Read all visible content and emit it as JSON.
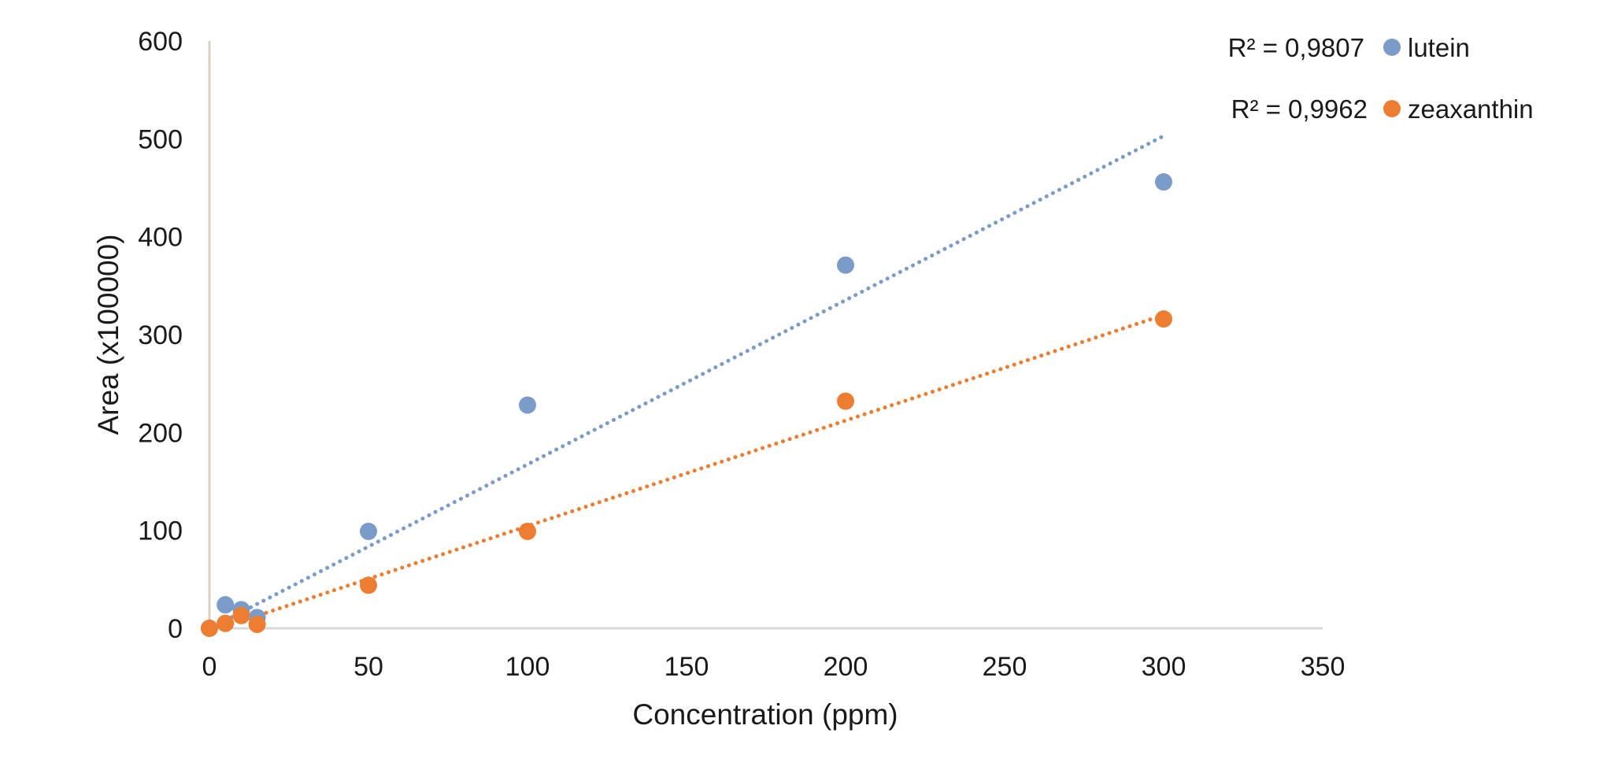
{
  "chart_data": {
    "type": "scatter",
    "title": "",
    "xlabel": "Concentration (ppm)",
    "ylabel": "Area (x100000)",
    "xlim": [
      0,
      350
    ],
    "ylim": [
      0,
      600
    ],
    "x_ticks": [
      "0",
      "50",
      "100",
      "150",
      "200",
      "250",
      "300",
      "350"
    ],
    "y_ticks": [
      "0",
      "100",
      "200",
      "300",
      "400",
      "500",
      "600"
    ],
    "grid": false,
    "legend_position": "top-right",
    "series": [
      {
        "name": "lutein",
        "color": "#7b9bc9",
        "marker": "circle",
        "points": [
          {
            "x": 0,
            "y": 0
          },
          {
            "x": 5,
            "y": 24
          },
          {
            "x": 10,
            "y": 19
          },
          {
            "x": 15,
            "y": 11
          },
          {
            "x": 50,
            "y": 99
          },
          {
            "x": 100,
            "y": 228
          },
          {
            "x": 200,
            "y": 371
          },
          {
            "x": 300,
            "y": 456
          }
        ],
        "trendline": {
          "style": "dotted",
          "from": [
            5,
            8
          ],
          "to": [
            300,
            503
          ]
        },
        "r2_label": "R² = 0,9807"
      },
      {
        "name": "zeaxanthin",
        "color": "#ed7d31",
        "marker": "circle",
        "points": [
          {
            "x": 0,
            "y": 0
          },
          {
            "x": 5,
            "y": 5
          },
          {
            "x": 10,
            "y": 13
          },
          {
            "x": 15,
            "y": 4
          },
          {
            "x": 50,
            "y": 44
          },
          {
            "x": 100,
            "y": 99
          },
          {
            "x": 200,
            "y": 232
          },
          {
            "x": 300,
            "y": 316
          }
        ],
        "trendline": {
          "style": "dotted",
          "from": [
            5,
            2
          ],
          "to": [
            300,
            320
          ]
        },
        "r2_label": "R² = 0,9962"
      }
    ]
  }
}
